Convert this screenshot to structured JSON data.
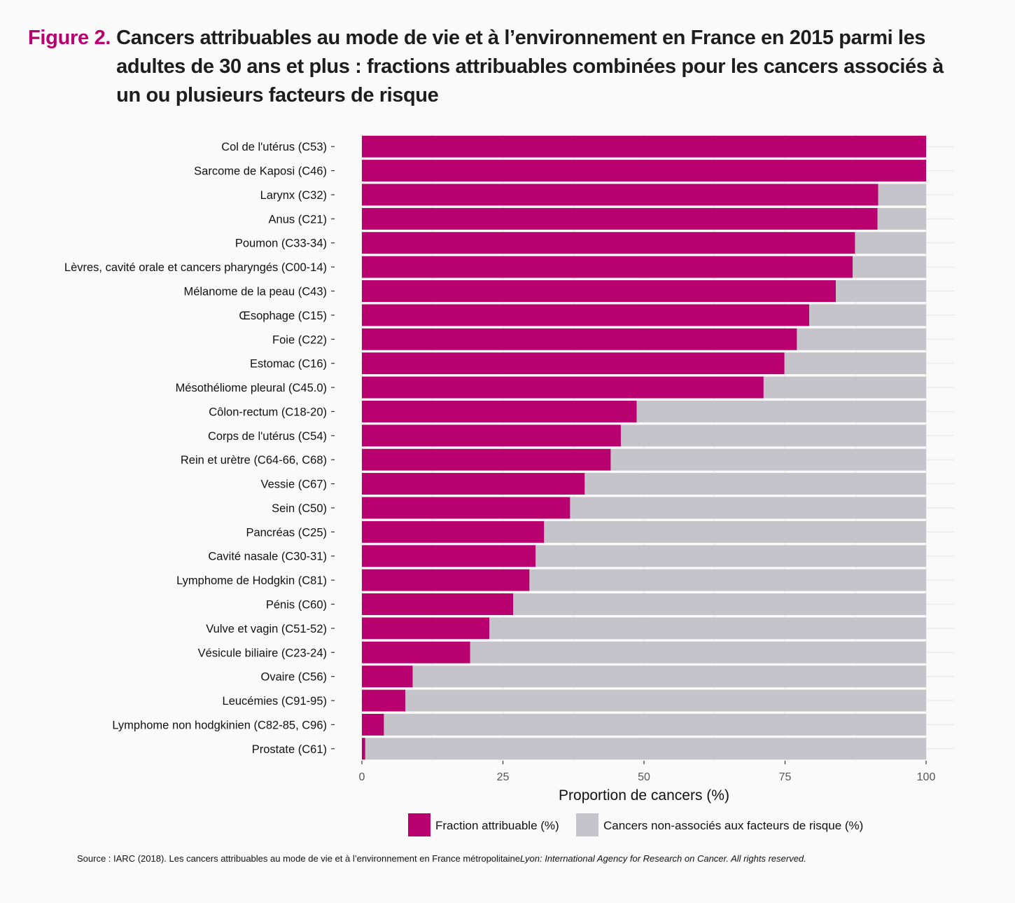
{
  "header": {
    "figure_label": "Figure 2.",
    "title": "Cancers attribuables au mode de vie et à l’environnement en France en 2015 parmi les adultes de 30 ans et plus : fractions attribuables combinées pour les cancers associés à un ou plusieurs facteurs de risque"
  },
  "colors": {
    "attributable": "#b8006f",
    "non_associated": "#c5c4ca",
    "grid": "#e6e6e6",
    "panel_background": "#fafafa"
  },
  "chart_data": {
    "type": "bar",
    "orientation": "horizontal",
    "stacked": true,
    "xlabel": "Proportion de cancers (%)",
    "xlim": [
      0,
      100
    ],
    "xticks": [
      0,
      25,
      50,
      75,
      100
    ],
    "grid": true,
    "legend_position": "bottom",
    "categories": [
      "Col de l'utérus (C53)",
      "Sarcome de Kaposi (C46)",
      "Larynx (C32)",
      "Anus (C21)",
      "Poumon (C33-34)",
      "Lèvres, cavité orale et cancers pharyngés (C00-14)",
      "Mélanome de la peau (C43)",
      "Œsophage (C15)",
      "Foie (C22)",
      "Estomac (C16)",
      "Mésothéliome pleural (C45.0)",
      "Côlon-rectum (C18-20)",
      "Corps de l'utérus (C54)",
      "Rein et urètre (C64-66, C68)",
      "Vessie (C67)",
      "Sein (C50)",
      "Pancréas (C25)",
      "Cavité nasale (C30-31)",
      "Lymphome de Hodgkin (C81)",
      "Pénis (C60)",
      "Vulve et vagin (C51-52)",
      "Vésicule biliaire (C23-24)",
      "Ovaire (C56)",
      "Leucémies (C91-95)",
      "Lymphome non hodgkinien (C82-85, C96)",
      "Prostate (C61)"
    ],
    "series": [
      {
        "name": "Fraction attribuable (%)",
        "values": [
          100,
          100,
          91.5,
          91.4,
          87.4,
          87.0,
          84.0,
          79.3,
          77.1,
          74.9,
          71.2,
          48.7,
          45.9,
          44.1,
          39.5,
          36.9,
          32.3,
          30.8,
          29.7,
          26.8,
          22.6,
          19.2,
          9.0,
          7.7,
          3.9,
          0.6
        ]
      },
      {
        "name": "Cancers non-associés aux facteurs de risque (%)",
        "values": [
          0,
          0,
          8.5,
          8.6,
          12.6,
          13.0,
          16.0,
          20.7,
          22.9,
          25.1,
          28.8,
          51.3,
          54.1,
          55.9,
          60.5,
          63.1,
          67.7,
          69.2,
          70.3,
          73.2,
          77.4,
          80.8,
          91.0,
          92.3,
          96.1,
          99.4
        ]
      }
    ]
  },
  "source": {
    "text": "Source : IARC (2018). Les cancers attribuables au mode de vie et à l’environnement en France métropolitaine",
    "italic_text": "Lyon: International Agency for Research on Cancer. All rights reserved."
  }
}
